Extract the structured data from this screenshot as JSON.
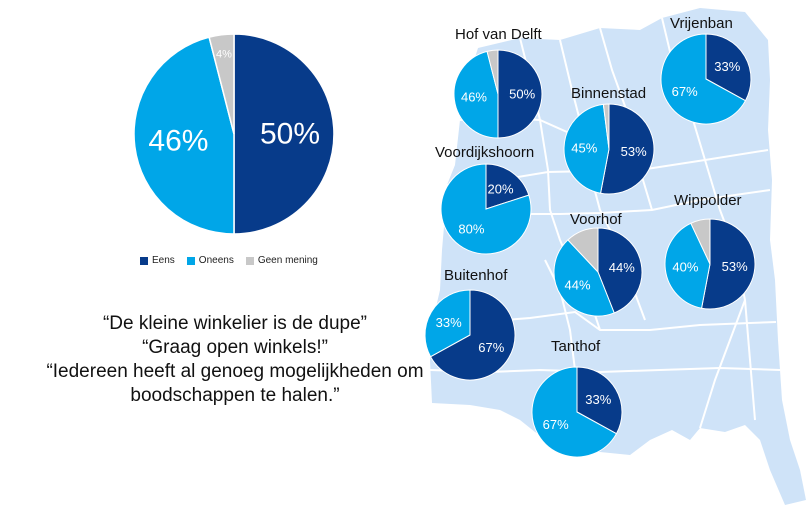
{
  "colors": {
    "eens": "#073b8a",
    "oneens": "#00a6e8",
    "geen": "#c8c8c8",
    "map": "#cfe3f8",
    "map_line": "#ffffff"
  },
  "legend": [
    {
      "label": "Eens",
      "color": "#073b8a"
    },
    {
      "label": "Oneens",
      "color": "#00a6e8"
    },
    {
      "label": "Geen mening",
      "color": "#c8c8c8"
    }
  ],
  "quotes": {
    "q1": "“De kleine winkelier is de dupe”",
    "q2": "“Graag open winkels!”",
    "q3_line1": "“Iedereen heeft al genoeg mogelijkheden om",
    "q3_line2": "boodschappen te halen.”"
  },
  "chart_data": [
    {
      "type": "pie",
      "name": "",
      "labels": [
        "Eens",
        "Oneens",
        "Geen mening"
      ],
      "values": [
        50,
        46,
        4
      ],
      "value_labels": [
        "50%",
        "46%",
        "4%"
      ]
    },
    {
      "type": "pie",
      "name": "Hof van Delft",
      "labels": [
        "Eens",
        "Oneens",
        "Geen mening"
      ],
      "values": [
        50,
        46,
        4
      ],
      "value_labels": [
        "50%",
        "46%",
        ""
      ]
    },
    {
      "type": "pie",
      "name": "Vrijenban",
      "labels": [
        "Eens",
        "Oneens",
        "Geen mening"
      ],
      "values": [
        33,
        67,
        0
      ],
      "value_labels": [
        "33%",
        "67%",
        ""
      ]
    },
    {
      "type": "pie",
      "name": "Binnenstad",
      "labels": [
        "Eens",
        "Oneens",
        "Geen mening"
      ],
      "values": [
        53,
        45,
        2
      ],
      "value_labels": [
        "53%",
        "45%",
        ""
      ]
    },
    {
      "type": "pie",
      "name": "Voordijkshoorn",
      "labels": [
        "Eens",
        "Oneens",
        "Geen mening"
      ],
      "values": [
        20,
        80,
        0
      ],
      "value_labels": [
        "20%",
        "80%",
        ""
      ]
    },
    {
      "type": "pie",
      "name": "Voorhof",
      "labels": [
        "Eens",
        "Oneens",
        "Geen mening"
      ],
      "values": [
        44,
        44,
        12
      ],
      "value_labels": [
        "44%",
        "44%",
        ""
      ]
    },
    {
      "type": "pie",
      "name": "Wippolder",
      "labels": [
        "Eens",
        "Oneens",
        "Geen mening"
      ],
      "values": [
        53,
        40,
        7
      ],
      "value_labels": [
        "53%",
        "40%",
        ""
      ]
    },
    {
      "type": "pie",
      "name": "Buitenhof",
      "labels": [
        "Eens",
        "Oneens",
        "Geen mening"
      ],
      "values": [
        67,
        33,
        0
      ],
      "value_labels": [
        "67%",
        "33%",
        ""
      ]
    },
    {
      "type": "pie",
      "name": "Tanthof",
      "labels": [
        "Eens",
        "Oneens",
        "Geen mening"
      ],
      "values": [
        33,
        67,
        0
      ],
      "value_labels": [
        "33%",
        "67%",
        ""
      ]
    }
  ]
}
